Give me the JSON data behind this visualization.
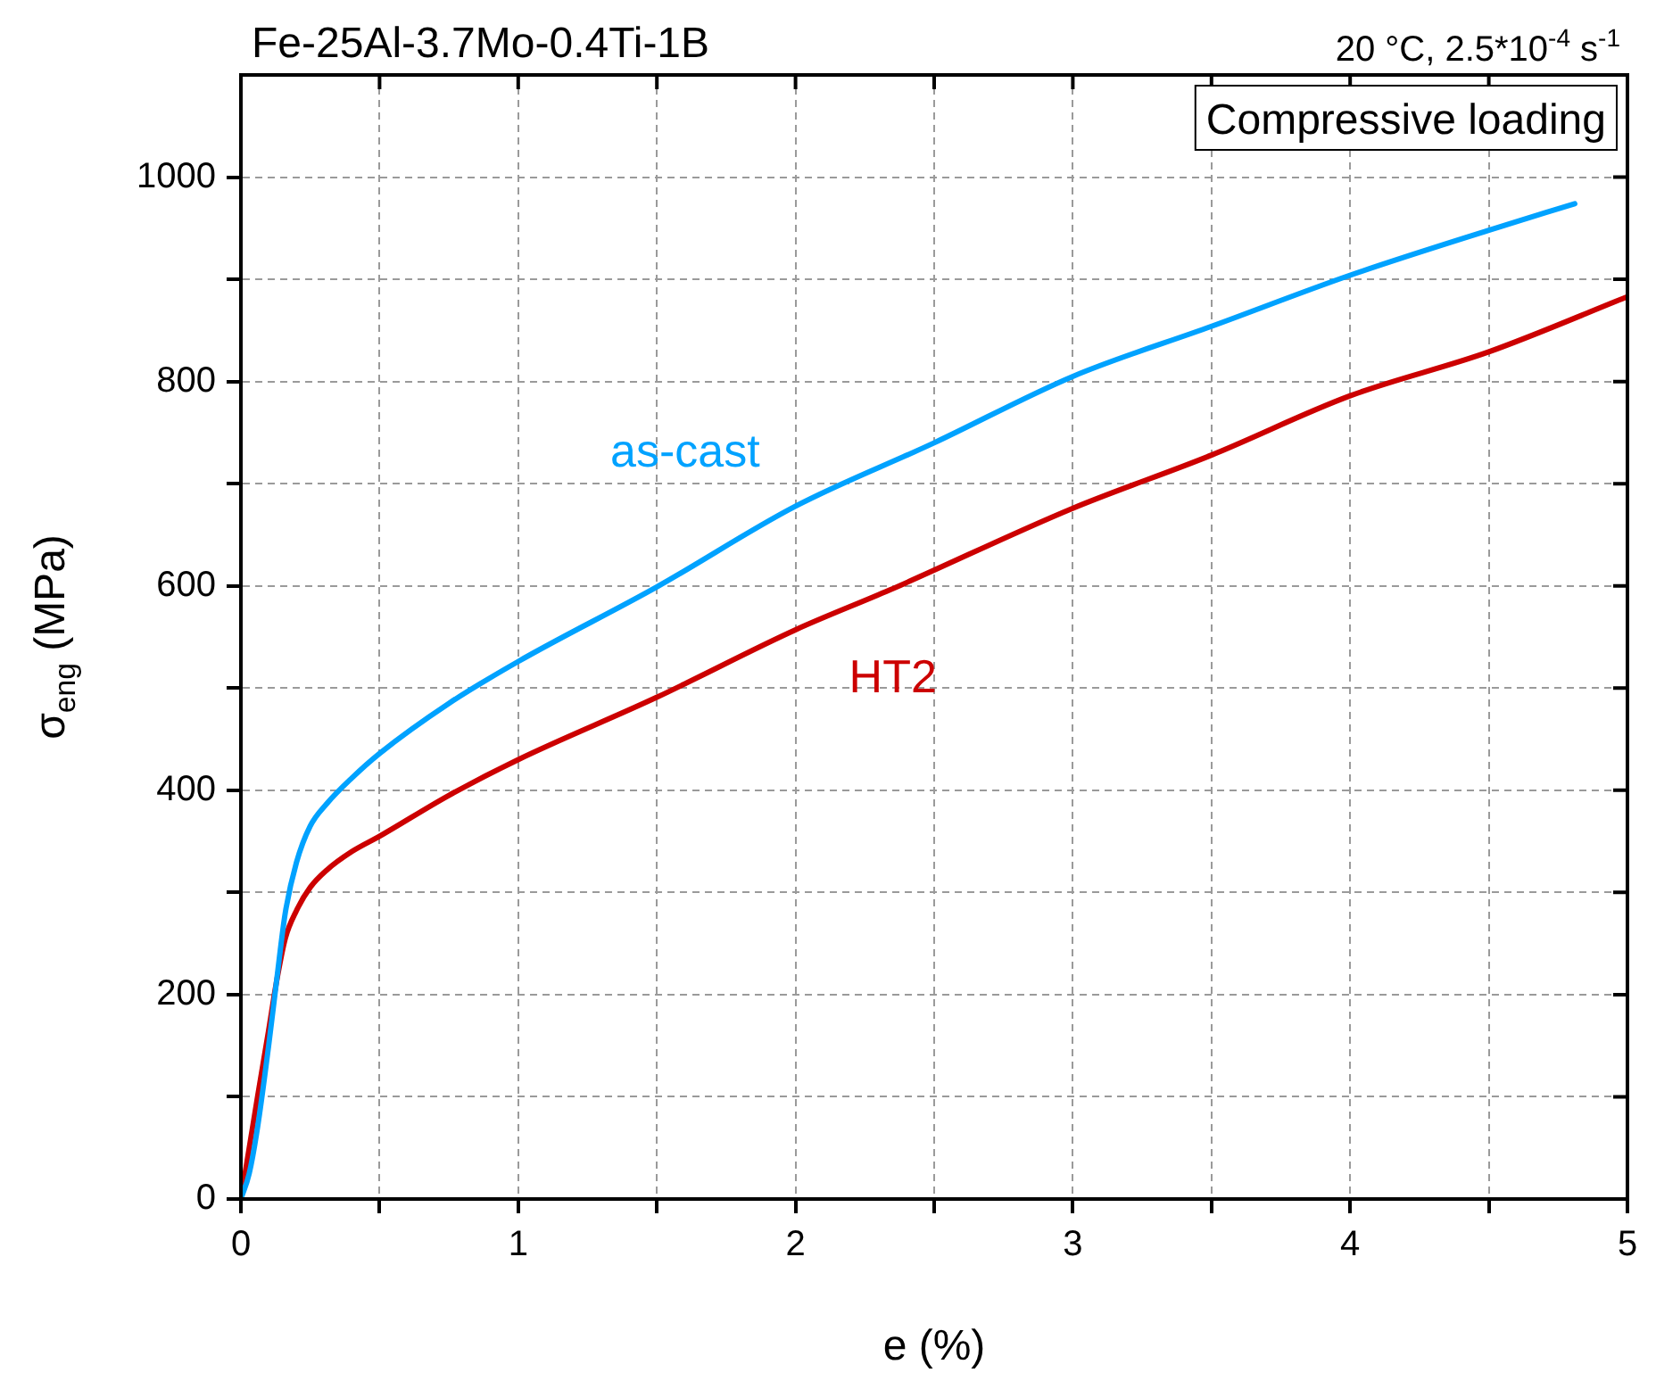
{
  "chart_data": {
    "type": "line",
    "title": "Fe-25Al-3.7Mo-0.4Ti-1B",
    "subtitle": "20 °C, 2.5*10$^{-4}$ s$^{-1}$",
    "xlabel": "e (%)",
    "ylabel": "σ$_{eng}$ (MPa)",
    "annotations": [
      "Compressive loading"
    ],
    "xlim": [
      0,
      5
    ],
    "ylim": [
      0,
      1100
    ],
    "xticks": [
      0,
      {
        "value": 0.5,
        "label": null
      },
      1,
      {
        "value": 1.5,
        "label": null
      },
      2,
      {
        "value": 2.5,
        "label": null
      },
      3,
      {
        "value": 3.5,
        "label": null
      },
      4,
      {
        "value": 4.5,
        "label": null
      },
      5
    ],
    "yticks": [
      0,
      {
        "value": 100,
        "label": null
      },
      200,
      {
        "value": 300,
        "label": null
      },
      400,
      {
        "value": 500,
        "label": null
      },
      600,
      {
        "value": 700,
        "label": null
      },
      800,
      {
        "value": 900,
        "label": null
      },
      1000
    ],
    "grid": true,
    "legend": false,
    "marker": "none",
    "line_style": "solid",
    "series": [
      {
        "name": "as-cast",
        "color": "#00a2ff",
        "x": [
          0,
          0.03,
          0.06,
          0.1,
          0.128,
          0.16,
          0.2,
          0.25,
          0.31,
          0.4,
          0.5,
          0.75,
          1,
          1.5,
          2,
          2.5,
          3,
          3.5,
          4,
          4.5,
          4.81
        ],
        "values": [
          0,
          25,
          70,
          150,
          212,
          280,
          329,
          365,
          387,
          412,
          436,
          485,
          526,
          599,
          678,
          740,
          805,
          854,
          904,
          948,
          974
        ]
      },
      {
        "name": "HT2",
        "color": "#cc0000",
        "x": [
          0,
          0.03,
          0.06,
          0.1,
          0.128,
          0.16,
          0.2,
          0.25,
          0.31,
          0.4,
          0.5,
          0.75,
          1,
          1.5,
          2,
          2.34,
          3,
          3.5,
          4,
          4.5,
          5
        ],
        "values": [
          0,
          50,
          100,
          165,
          212,
          255,
          282,
          305,
          322,
          340,
          355,
          395,
          430,
          491,
          557,
          596,
          676,
          728,
          786,
          829,
          883
        ]
      }
    ]
  }
}
